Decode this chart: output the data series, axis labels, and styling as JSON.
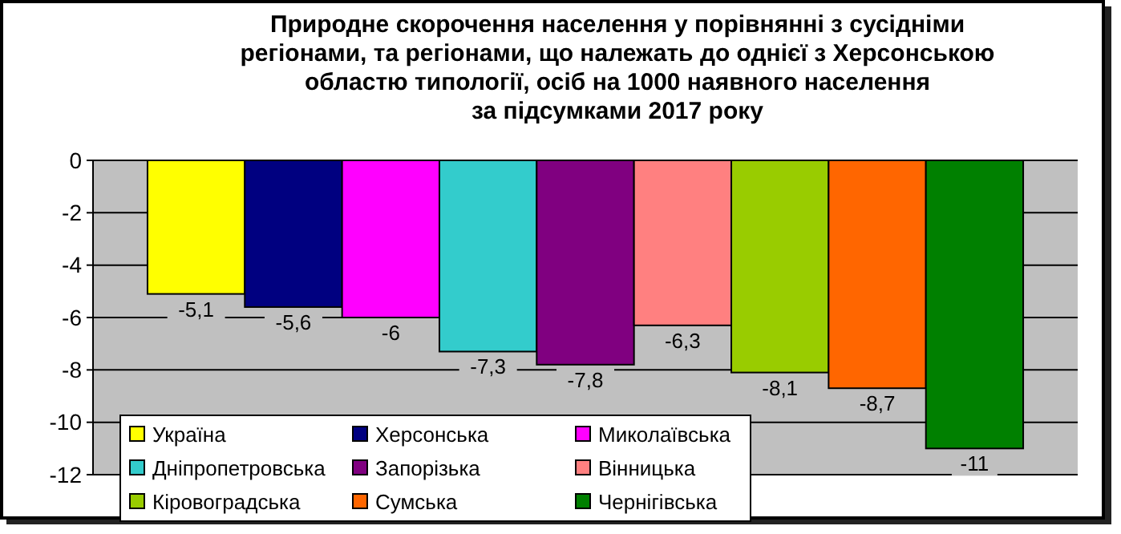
{
  "chart_data": {
    "type": "bar",
    "title": "Природне скорочення населення у порівнянні з сусідніми\nрегіонами, та регіонами, що належать до однієї з Херсонською\nобластю типології, осіб на 1000 наявного населення\nза підсумками 2017 року",
    "categories": [
      null
    ],
    "series": [
      {
        "name": "Україна",
        "color": "#ffff00",
        "values": [
          -5.1
        ],
        "value_labels": [
          "-5,1"
        ]
      },
      {
        "name": "Херсонська",
        "color": "#000080",
        "values": [
          -5.6
        ],
        "value_labels": [
          "-5,6"
        ]
      },
      {
        "name": "Миколаївська",
        "color": "#ff00ff",
        "values": [
          -6
        ],
        "value_labels": [
          "-6"
        ]
      },
      {
        "name": "Дніпропетровська",
        "color": "#33cccc",
        "values": [
          -7.3
        ],
        "value_labels": [
          "-7,3"
        ]
      },
      {
        "name": "Запорізька",
        "color": "#800080",
        "values": [
          -7.8
        ],
        "value_labels": [
          "-7,8"
        ]
      },
      {
        "name": "Вінницька",
        "color": "#ff8080",
        "values": [
          -6.3
        ],
        "value_labels": [
          "-6,3"
        ]
      },
      {
        "name": "Кіровоградська",
        "color": "#99cc00",
        "values": [
          -8.1
        ],
        "value_labels": [
          "-8,1"
        ]
      },
      {
        "name": "Сумська",
        "color": "#ff6600",
        "values": [
          -8.7
        ],
        "value_labels": [
          "-8,7"
        ]
      },
      {
        "name": "Чернігівська",
        "color": "#008000",
        "values": [
          -11
        ],
        "value_labels": [
          "-11"
        ]
      }
    ],
    "ylim": [
      -12,
      0
    ],
    "yticks": [
      0,
      -2,
      -4,
      -6,
      -8,
      -10,
      -12
    ],
    "grid": "y",
    "legend": "bottom left",
    "tick_labels": "y"
  }
}
